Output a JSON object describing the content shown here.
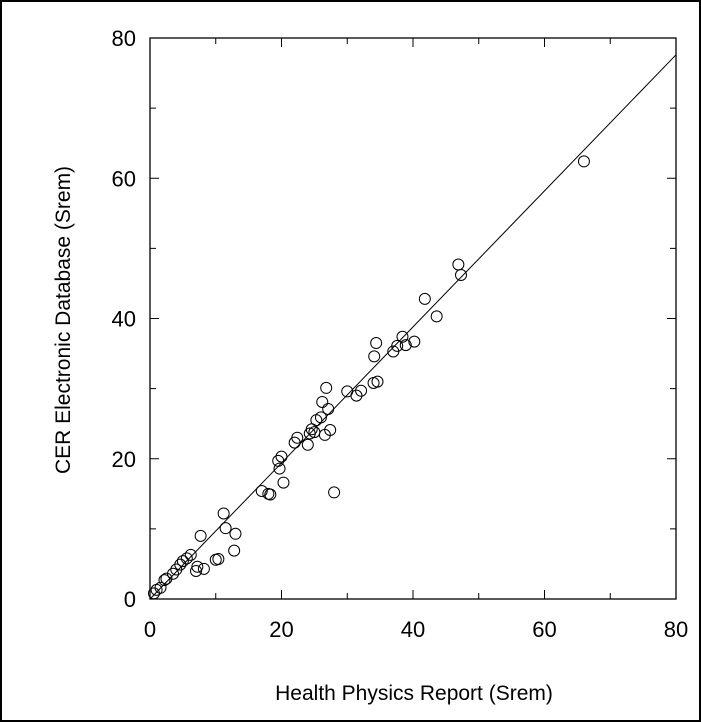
{
  "chart_data": {
    "type": "scatter",
    "xlabel": "Health Physics Report (Srem)",
    "ylabel": "CER Electronic Database (Srem)",
    "xlim": [
      0,
      80
    ],
    "ylim": [
      0,
      80
    ],
    "xticks": [
      0,
      20,
      40,
      60,
      80
    ],
    "yticks": [
      0,
      20,
      40,
      60,
      80
    ],
    "minor_tick_step": 10,
    "grid": false,
    "marker": "open-circle",
    "fit_line": {
      "slope": 0.97,
      "intercept": 0.0
    },
    "points": [
      [
        0.6,
        0.8
      ],
      [
        1.0,
        1.3
      ],
      [
        1.6,
        1.6
      ],
      [
        2.2,
        2.7
      ],
      [
        2.5,
        2.9
      ],
      [
        3.5,
        3.6
      ],
      [
        4.0,
        4.2
      ],
      [
        4.6,
        4.9
      ],
      [
        5.0,
        5.4
      ],
      [
        5.6,
        5.8
      ],
      [
        6.2,
        6.3
      ],
      [
        7.0,
        4.0
      ],
      [
        7.2,
        4.6
      ],
      [
        7.7,
        9.0
      ],
      [
        8.2,
        4.3
      ],
      [
        10.0,
        5.6
      ],
      [
        10.4,
        5.7
      ],
      [
        11.2,
        12.2
      ],
      [
        11.5,
        10.1
      ],
      [
        12.8,
        6.9
      ],
      [
        13.0,
        9.3
      ],
      [
        17.0,
        15.4
      ],
      [
        18.0,
        15.0
      ],
      [
        18.3,
        14.9
      ],
      [
        19.5,
        19.7
      ],
      [
        19.7,
        18.6
      ],
      [
        20.0,
        20.3
      ],
      [
        20.3,
        16.6
      ],
      [
        22.0,
        22.3
      ],
      [
        22.4,
        23.0
      ],
      [
        24.0,
        22.0
      ],
      [
        24.3,
        23.6
      ],
      [
        24.6,
        24.2
      ],
      [
        25.0,
        23.8
      ],
      [
        25.3,
        25.5
      ],
      [
        26.0,
        25.9
      ],
      [
        26.2,
        28.1
      ],
      [
        26.6,
        23.4
      ],
      [
        26.8,
        30.1
      ],
      [
        27.1,
        27.1
      ],
      [
        27.4,
        24.1
      ],
      [
        28.0,
        15.2
      ],
      [
        30.0,
        29.6
      ],
      [
        31.4,
        29.0
      ],
      [
        32.1,
        29.7
      ],
      [
        34.0,
        30.8
      ],
      [
        34.1,
        34.6
      ],
      [
        34.4,
        36.5
      ],
      [
        34.6,
        31.0
      ],
      [
        37.0,
        35.3
      ],
      [
        37.6,
        36.1
      ],
      [
        38.4,
        37.4
      ],
      [
        38.9,
        36.2
      ],
      [
        40.2,
        36.7
      ],
      [
        41.8,
        42.8
      ],
      [
        43.6,
        40.3
      ],
      [
        46.9,
        47.7
      ],
      [
        47.3,
        46.2
      ],
      [
        66.0,
        62.4
      ]
    ]
  }
}
